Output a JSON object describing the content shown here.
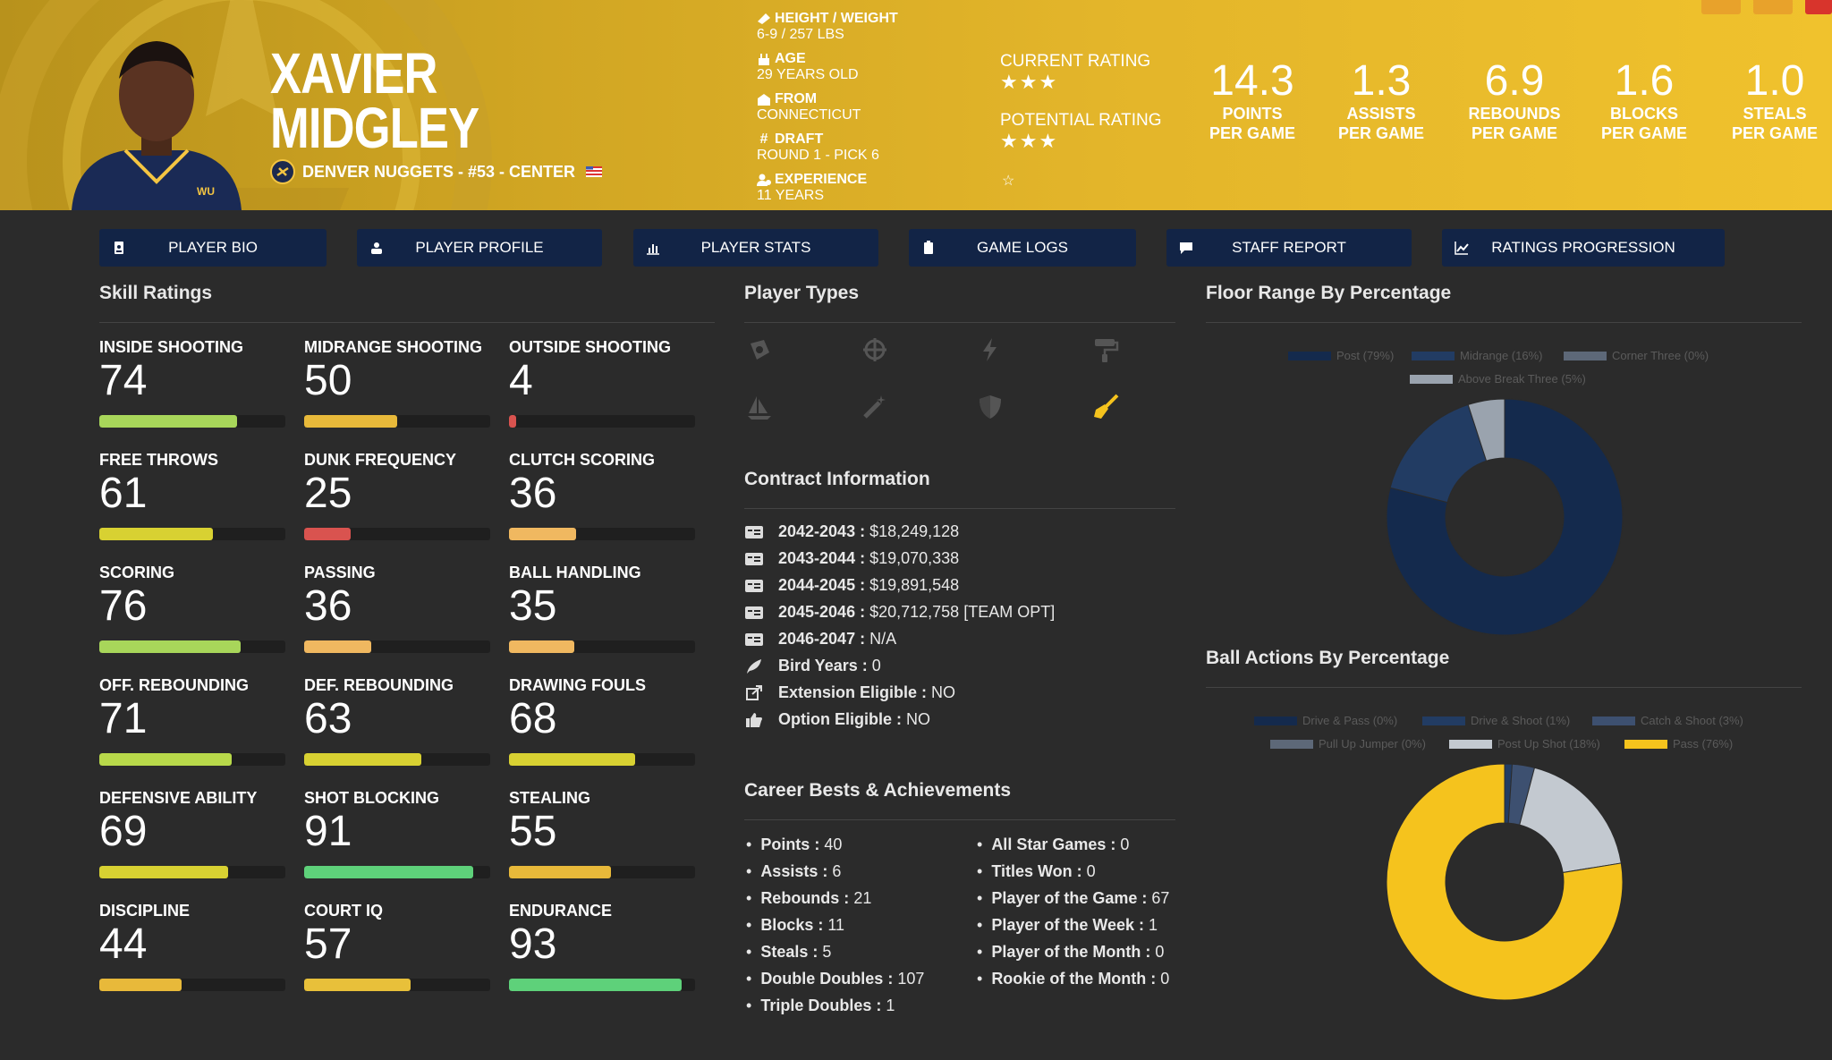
{
  "player": {
    "first_name": "XAVIER",
    "last_name": "MIDGLEY",
    "team_line": "DENVER NUGGETS - #53 - CENTER"
  },
  "bio": [
    {
      "label": "HEIGHT / WEIGHT",
      "value": "6-9 / 257 LBS",
      "icon": "ruler-icon"
    },
    {
      "label": "AGE",
      "value": "29 YEARS OLD",
      "icon": "cake-icon"
    },
    {
      "label": "FROM",
      "value": "CONNECTICUT",
      "icon": "school-icon"
    },
    {
      "label": "DRAFT",
      "value": "ROUND 1 - PICK 6",
      "icon": "hashtag-icon"
    },
    {
      "label": "EXPERIENCE",
      "value": "11 YEARS",
      "icon": "user-clock-icon"
    }
  ],
  "ratings": {
    "current_label": "CURRENT RATING",
    "current_stars": 3,
    "potential_label": "POTENTIAL RATING",
    "potential_stars": 3
  },
  "stats": [
    {
      "value": "14.3",
      "label1": "POINTS",
      "label2": "PER GAME"
    },
    {
      "value": "1.3",
      "label1": "ASSISTS",
      "label2": "PER GAME"
    },
    {
      "value": "6.9",
      "label1": "REBOUNDS",
      "label2": "PER GAME"
    },
    {
      "value": "1.6",
      "label1": "BLOCKS",
      "label2": "PER GAME"
    },
    {
      "value": "1.0",
      "label1": "STEALS",
      "label2": "PER GAME"
    }
  ],
  "nav": [
    {
      "label": "PLAYER BIO",
      "icon": "id-badge-icon"
    },
    {
      "label": "PLAYER PROFILE",
      "icon": "users-icon"
    },
    {
      "label": "PLAYER STATS",
      "icon": "bar-chart-icon"
    },
    {
      "label": "GAME LOGS",
      "icon": "clipboard-icon"
    },
    {
      "label": "STAFF REPORT",
      "icon": "comment-icon"
    },
    {
      "label": "RATINGS PROGRESSION",
      "icon": "line-chart-icon"
    }
  ],
  "sections": {
    "skills": "Skill Ratings",
    "types": "Player Types",
    "contract": "Contract Information",
    "careers": "Career Bests & Achievements",
    "floor": "Floor Range By Percentage",
    "ball": "Ball Actions By Percentage"
  },
  "skills": [
    {
      "name": "INSIDE SHOOTING",
      "value": 74,
      "color": "#a8d65a"
    },
    {
      "name": "MIDRANGE SHOOTING",
      "value": 50,
      "color": "#e8b93a"
    },
    {
      "name": "OUTSIDE SHOOTING",
      "value": 4,
      "color": "#d9534f"
    },
    {
      "name": "FREE THROWS",
      "value": 61,
      "color": "#d8d132"
    },
    {
      "name": "DUNK FREQUENCY",
      "value": 25,
      "color": "#d9534f"
    },
    {
      "name": "CLUTCH SCORING",
      "value": 36,
      "color": "#f0b860"
    },
    {
      "name": "SCORING",
      "value": 76,
      "color": "#a8d65a"
    },
    {
      "name": "PASSING",
      "value": 36,
      "color": "#f0b860"
    },
    {
      "name": "BALL HANDLING",
      "value": 35,
      "color": "#f0b860"
    },
    {
      "name": "OFF. REBOUNDING",
      "value": 71,
      "color": "#b8d94a"
    },
    {
      "name": "DEF. REBOUNDING",
      "value": 63,
      "color": "#d8d132"
    },
    {
      "name": "DRAWING FOULS",
      "value": 68,
      "color": "#d8d132"
    },
    {
      "name": "DEFENSIVE ABILITY",
      "value": 69,
      "color": "#d8d132"
    },
    {
      "name": "SHOT BLOCKING",
      "value": 91,
      "color": "#5ed17a"
    },
    {
      "name": "STEALING",
      "value": 55,
      "color": "#e8b93a"
    },
    {
      "name": "DISCIPLINE",
      "value": 44,
      "color": "#e8b93a"
    },
    {
      "name": "COURT IQ",
      "value": 57,
      "color": "#e8c03a"
    },
    {
      "name": "ENDURANCE",
      "value": 93,
      "color": "#5ed17a"
    }
  ],
  "player_types": [
    {
      "icon": "badge-icon",
      "active": false
    },
    {
      "icon": "crosshair-icon",
      "active": false
    },
    {
      "icon": "bolt-icon",
      "active": false
    },
    {
      "icon": "paint-roller-icon",
      "active": false
    },
    {
      "icon": "sailboat-icon",
      "active": false
    },
    {
      "icon": "magic-wand-icon",
      "active": false
    },
    {
      "icon": "shield-icon",
      "active": false
    },
    {
      "icon": "broom-icon",
      "active": true
    }
  ],
  "contract": [
    {
      "label": "2042-2043 :",
      "value": "$18,249,128",
      "icon": "money-icon"
    },
    {
      "label": "2043-2044 :",
      "value": "$19,070,338",
      "icon": "money-icon"
    },
    {
      "label": "2044-2045 :",
      "value": "$19,891,548",
      "icon": "money-icon"
    },
    {
      "label": "2045-2046 :",
      "value": "$20,712,758 [TEAM OPT]",
      "icon": "money-icon"
    },
    {
      "label": "2046-2047 :",
      "value": "N/A",
      "icon": "money-icon"
    },
    {
      "label": "Bird Years :",
      "value": "0",
      "icon": "feather-icon"
    },
    {
      "label": "Extension Eligible :",
      "value": "NO",
      "icon": "external-link-icon"
    },
    {
      "label": "Option Eligible :",
      "value": "NO",
      "icon": "thumbs-up-icon"
    }
  ],
  "bests_left": [
    {
      "label": "Points :",
      "value": "40"
    },
    {
      "label": "Assists :",
      "value": "6"
    },
    {
      "label": "Rebounds :",
      "value": "21"
    },
    {
      "label": "Blocks :",
      "value": "11"
    },
    {
      "label": "Steals :",
      "value": "5"
    },
    {
      "label": "Double Doubles :",
      "value": "107"
    },
    {
      "label": "Triple Doubles :",
      "value": "1"
    }
  ],
  "bests_right": [
    {
      "label": "All Star Games :",
      "value": "0"
    },
    {
      "label": "Titles Won :",
      "value": "0"
    },
    {
      "label": "Player of the Game :",
      "value": "67"
    },
    {
      "label": "Player of the Week :",
      "value": "1"
    },
    {
      "label": "Player of the Month :",
      "value": "0"
    },
    {
      "label": "Rookie of the Month :",
      "value": "0"
    }
  ],
  "chart_data": [
    {
      "type": "pie",
      "title": "Floor Range By Percentage",
      "categories": [
        "Post (79%)",
        "Midrange (16%)",
        "Corner Three (0%)",
        "Above Break Three (5%)"
      ],
      "values": [
        79,
        16,
        0,
        5
      ],
      "colors": [
        "#142a4d",
        "#223c63",
        "#5d6878",
        "#9aa3ae"
      ],
      "legend": "top"
    },
    {
      "type": "pie",
      "title": "Ball Actions By Percentage",
      "categories": [
        "Drive & Pass (0%)",
        "Drive & Shoot (1%)",
        "Catch & Shoot (3%)",
        "Pull Up Jumper (0%)",
        "Post Up Shot (18%)",
        "Pass (76%)"
      ],
      "values": [
        0,
        1,
        3,
        0,
        18,
        76
      ],
      "colors": [
        "#142a4d",
        "#223c63",
        "#3d5070",
        "#5d6878",
        "#c3c9d0",
        "#f5c31d"
      ],
      "legend": "top"
    }
  ]
}
